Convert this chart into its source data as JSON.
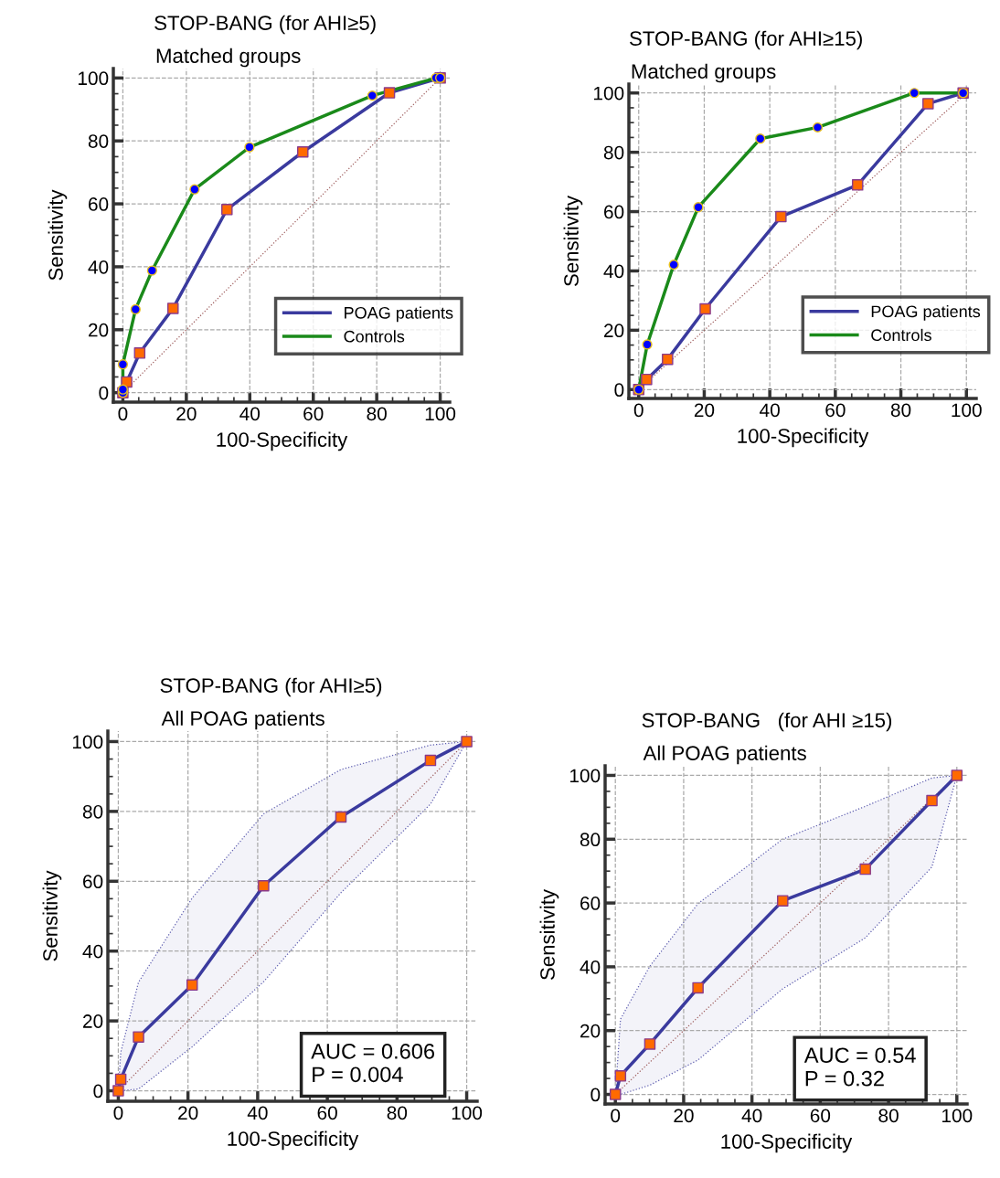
{
  "chart_data": [
    {
      "type": "line",
      "title": "STOP-BANG (for AHI≥5)",
      "subtitle": "Matched groups",
      "xlabel": "100-Specificity",
      "ylabel": "Sensitivity",
      "xlim": [
        -3,
        103
      ],
      "ylim": [
        -3,
        103
      ],
      "xticks": [
        0,
        20,
        40,
        60,
        80,
        100
      ],
      "yticks": [
        0,
        20,
        40,
        60,
        80,
        100
      ],
      "grid": true,
      "legend": "bottom right",
      "series": [
        {
          "x": [
            0,
            100
          ],
          "values": [
            0,
            100
          ],
          "color": "#a06060",
          "line_style": "dotted",
          "marker": "none"
        },
        {
          "name": "POAG patients",
          "x": [
            0,
            1.2,
            5.3,
            15.8,
            32.8,
            56.7,
            84,
            100
          ],
          "values": [
            0,
            3.4,
            12.6,
            26.8,
            58.2,
            76.5,
            95.3,
            100
          ],
          "color": "#3a3a9e",
          "line_style": "solid",
          "marker": "square",
          "colors": [
            "#ff6a00",
            "#ff6a00",
            "#ff6a00",
            "#ff6a00",
            "#ff6a00",
            "#ff6a00",
            "#ff6a00",
            "#ff6a00"
          ]
        },
        {
          "name": "Controls",
          "x": [
            0,
            0,
            0,
            4,
            9.2,
            22.6,
            39.9,
            78.6,
            98.7,
            100
          ],
          "values": [
            0,
            1,
            9,
            26.5,
            38.8,
            64.6,
            78,
            94.4,
            100,
            100
          ],
          "color": "#1a8a1a",
          "line_style": "solid",
          "marker": "circle",
          "colors": [
            "#0000ff",
            "#0000ff",
            "#0000ff",
            "#0000ff",
            "#0000ff",
            "#0000ff",
            "#0000ff",
            "#0000ff",
            "#0000ff",
            "#0000ff"
          ]
        }
      ]
    },
    {
      "type": "line",
      "title": "STOP-BANG (for AHI≥15)",
      "subtitle": "Matched groups",
      "xlabel": "100-Specificity",
      "ylabel": "Sensitivity",
      "xlim": [
        -3,
        103
      ],
      "ylim": [
        -3,
        103
      ],
      "xticks": [
        0,
        20,
        40,
        60,
        80,
        100
      ],
      "yticks": [
        0,
        20,
        40,
        60,
        80,
        100
      ],
      "grid": true,
      "legend": "bottom right",
      "series": [
        {
          "x": [
            0,
            100
          ],
          "values": [
            0,
            100
          ],
          "color": "#a06060",
          "line_style": "dotted",
          "marker": "none"
        },
        {
          "name": "POAG patients",
          "x": [
            0,
            2.4,
            8.8,
            20.3,
            43.4,
            66.8,
            88.3,
            99
          ],
          "values": [
            0,
            3.4,
            10.2,
            27.2,
            58.3,
            69,
            96.4,
            100
          ],
          "color": "#3a3a9e",
          "line_style": "solid",
          "marker": "square",
          "colors": [
            "#ff6a00",
            "#ff6a00",
            "#ff6a00",
            "#ff6a00",
            "#ff6a00",
            "#ff6a00",
            "#ff6a00",
            "#ff6a00"
          ]
        },
        {
          "name": "Controls",
          "x": [
            0,
            2.6,
            10.7,
            18.2,
            37.1,
            54.6,
            84.1,
            99
          ],
          "values": [
            0,
            15.2,
            42.1,
            61.5,
            84.6,
            88.4,
            100,
            100
          ],
          "color": "#1a8a1a",
          "line_style": "solid",
          "marker": "circle",
          "colors": [
            "#0000ff",
            "#0000ff",
            "#0000ff",
            "#0000ff",
            "#0000ff",
            "#0000ff",
            "#0000ff",
            "#0000ff"
          ]
        }
      ]
    },
    {
      "type": "line",
      "title": "STOP-BANG (for AHI≥5)",
      "subtitle": "All POAG patients",
      "xlabel": "100-Specificity",
      "ylabel": "Sensitivity",
      "xlim": [
        -3,
        103
      ],
      "ylim": [
        -3,
        103
      ],
      "xticks": [
        0,
        20,
        40,
        60,
        80,
        100
      ],
      "yticks": [
        0,
        20,
        40,
        60,
        80,
        100
      ],
      "grid": true,
      "annotations": [
        "AUC = 0.606",
        "P = 0.004"
      ],
      "series": [
        {
          "x": [
            0,
            100
          ],
          "values": [
            0,
            100
          ],
          "color": "#a06060",
          "line_style": "dotted",
          "marker": "none"
        },
        {
          "x": [
            0,
            0.7,
            5.8,
            21.2,
            41.7,
            63.9,
            89.6,
            100
          ],
          "values": [
            0,
            3.3,
            15.4,
            30.3,
            58.7,
            78.4,
            94.6,
            100
          ],
          "upper": [
            0,
            11,
            31.1,
            55.2,
            79.3,
            92,
            99,
            100
          ],
          "lower": [
            0,
            0,
            0.5,
            12.6,
            31.2,
            56.7,
            82.1,
            100
          ],
          "color": "#3a3a9e",
          "line_style": "solid",
          "marker": "square",
          "colors": [
            "#ff6a00",
            "#ff6a00",
            "#ff6a00",
            "#ff6a00",
            "#ff6a00",
            "#ff6a00",
            "#ff6a00",
            "#ff6a00"
          ]
        }
      ]
    },
    {
      "type": "line",
      "title": "STOP-BANG   (for AHI ≥15)",
      "subtitle": "All POAG patients",
      "xlabel": "100-Specificity",
      "ylabel": "Sensitivity",
      "xlim": [
        -3,
        103
      ],
      "ylim": [
        -3,
        103
      ],
      "xticks": [
        0,
        20,
        40,
        60,
        80,
        100
      ],
      "yticks": [
        0,
        20,
        40,
        60,
        80,
        100
      ],
      "grid": true,
      "annotations": [
        "AUC = 0.54",
        "P = 0.32"
      ],
      "series": [
        {
          "x": [
            0,
            100
          ],
          "values": [
            0,
            100
          ],
          "color": "#a06060",
          "line_style": "dotted",
          "marker": "none"
        },
        {
          "x": [
            0,
            1.5,
            10.1,
            24.2,
            49,
            73.2,
            92.7,
            100
          ],
          "values": [
            0,
            5.8,
            15.8,
            33.4,
            60.7,
            70.6,
            92.1,
            100
          ],
          "upper": [
            0,
            23.6,
            40.2,
            59.8,
            80,
            90.3,
            99.2,
            100
          ],
          "lower": [
            0,
            0,
            2.9,
            10.8,
            33.1,
            49.1,
            71.3,
            100
          ],
          "color": "#3a3a9e",
          "line_style": "solid",
          "marker": "square",
          "colors": [
            "#ff6a00",
            "#ff6a00",
            "#ff6a00",
            "#ff6a00",
            "#ff6a00",
            "#ff6a00",
            "#ff6a00",
            "#ff6a00"
          ]
        }
      ]
    }
  ]
}
